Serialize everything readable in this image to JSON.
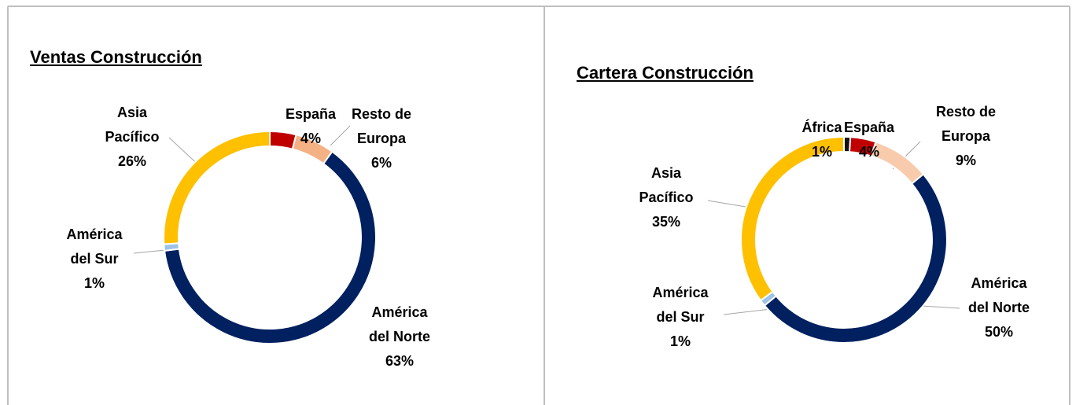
{
  "chart_data": [
    {
      "type": "donut",
      "title": "Ventas Construcción",
      "categories": [
        "España",
        "Resto de Europa",
        "América del Norte",
        "América del Sur",
        "Asia Pacífico"
      ],
      "values": [
        4,
        6,
        63,
        1,
        26
      ],
      "value_labels": [
        "4%",
        "6%",
        "63%",
        "1%",
        "26%"
      ],
      "colors": [
        "#c00000",
        "#f4b183",
        "#002060",
        "#9dc3e6",
        "#ffc000"
      ]
    },
    {
      "type": "donut",
      "title": "Cartera Construcción",
      "categories": [
        "África",
        "España",
        "Resto de Europa",
        "América del Norte",
        "América del Sur",
        "Asia Pacífico"
      ],
      "values": [
        1,
        4,
        9,
        50,
        1,
        35
      ],
      "value_labels": [
        "1%",
        "4%",
        "9%",
        "50%",
        "1%",
        "35%"
      ],
      "colors": [
        "#111111",
        "#c00000",
        "#f8cbad",
        "#002060",
        "#9dc3e6",
        "#ffc000"
      ]
    }
  ]
}
